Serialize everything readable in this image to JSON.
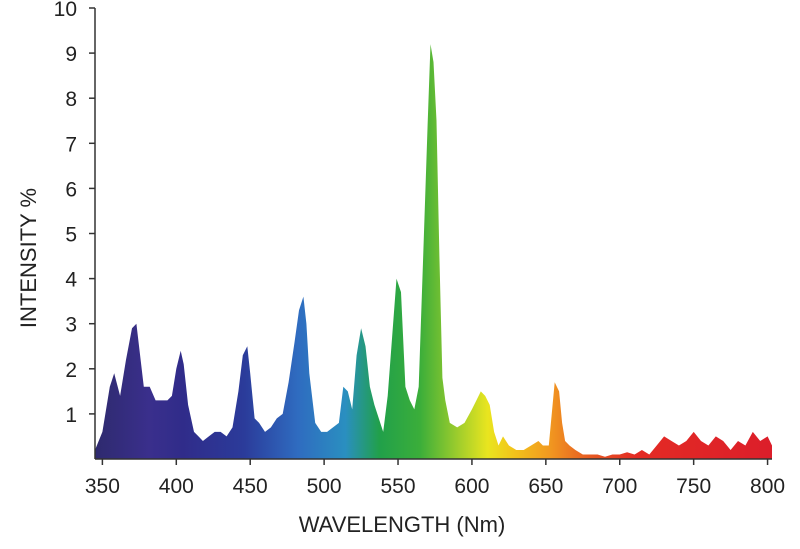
{
  "chart_data": {
    "type": "area",
    "title": "",
    "xlabel": "WAVELENGTH (Nm)",
    "ylabel": "INTENSITY %",
    "xlim": [
      345,
      803
    ],
    "ylim": [
      0,
      10
    ],
    "x_ticks": [
      350,
      400,
      450,
      500,
      550,
      600,
      650,
      700,
      750,
      800
    ],
    "y_ticks": [
      1,
      2,
      3,
      4,
      5,
      6,
      7,
      8,
      9,
      10
    ],
    "grid": false,
    "fill": "rainbow-gradient-by-wavelength",
    "series": [
      {
        "x": [
          345,
          350,
          355,
          358,
          362,
          366,
          370,
          373,
          378,
          382,
          386,
          390,
          394,
          397,
          400,
          403,
          405,
          408,
          412,
          415,
          418,
          422,
          426,
          430,
          434,
          438,
          442,
          445,
          448,
          450,
          453,
          456,
          460,
          464,
          468,
          472,
          476,
          480,
          483,
          486,
          488,
          490,
          494,
          498,
          502,
          506,
          510,
          513,
          516,
          519,
          522,
          525,
          528,
          531,
          534,
          537,
          540,
          543,
          546,
          549,
          552,
          555,
          558,
          561,
          564,
          567,
          570,
          572,
          574,
          576,
          578,
          580,
          582,
          585,
          590,
          595,
          600,
          603,
          606,
          609,
          612,
          615,
          618,
          621,
          625,
          630,
          635,
          640,
          645,
          648,
          652,
          656,
          659,
          661,
          663,
          666,
          670,
          675,
          680,
          685,
          690,
          695,
          700,
          705,
          710,
          715,
          720,
          725,
          730,
          735,
          740,
          745,
          750,
          755,
          760,
          765,
          770,
          775,
          780,
          785,
          790,
          795,
          800,
          803
        ],
        "values": [
          0.2,
          0.6,
          1.6,
          1.9,
          1.4,
          2.2,
          2.9,
          3.0,
          1.6,
          1.6,
          1.3,
          1.3,
          1.3,
          1.4,
          2.0,
          2.4,
          2.1,
          1.2,
          0.6,
          0.5,
          0.4,
          0.5,
          0.6,
          0.6,
          0.5,
          0.7,
          1.5,
          2.3,
          2.5,
          1.9,
          0.9,
          0.8,
          0.6,
          0.7,
          0.9,
          1.0,
          1.7,
          2.6,
          3.3,
          3.6,
          3.0,
          1.9,
          0.8,
          0.6,
          0.6,
          0.7,
          0.8,
          1.6,
          1.5,
          1.1,
          2.3,
          2.9,
          2.5,
          1.6,
          1.2,
          0.9,
          0.6,
          1.4,
          2.7,
          4.0,
          3.7,
          1.6,
          1.3,
          1.1,
          1.6,
          4.5,
          7.4,
          9.2,
          8.8,
          7.5,
          4.5,
          1.8,
          1.3,
          0.8,
          0.7,
          0.8,
          1.1,
          1.3,
          1.5,
          1.4,
          1.2,
          0.6,
          0.3,
          0.5,
          0.3,
          0.2,
          0.2,
          0.3,
          0.4,
          0.3,
          0.3,
          1.7,
          1.5,
          0.8,
          0.4,
          0.3,
          0.2,
          0.1,
          0.1,
          0.1,
          0.05,
          0.1,
          0.1,
          0.15,
          0.1,
          0.2,
          0.1,
          0.3,
          0.5,
          0.4,
          0.3,
          0.4,
          0.6,
          0.4,
          0.3,
          0.5,
          0.4,
          0.2,
          0.4,
          0.3,
          0.6,
          0.4,
          0.5,
          0.3
        ]
      }
    ]
  }
}
